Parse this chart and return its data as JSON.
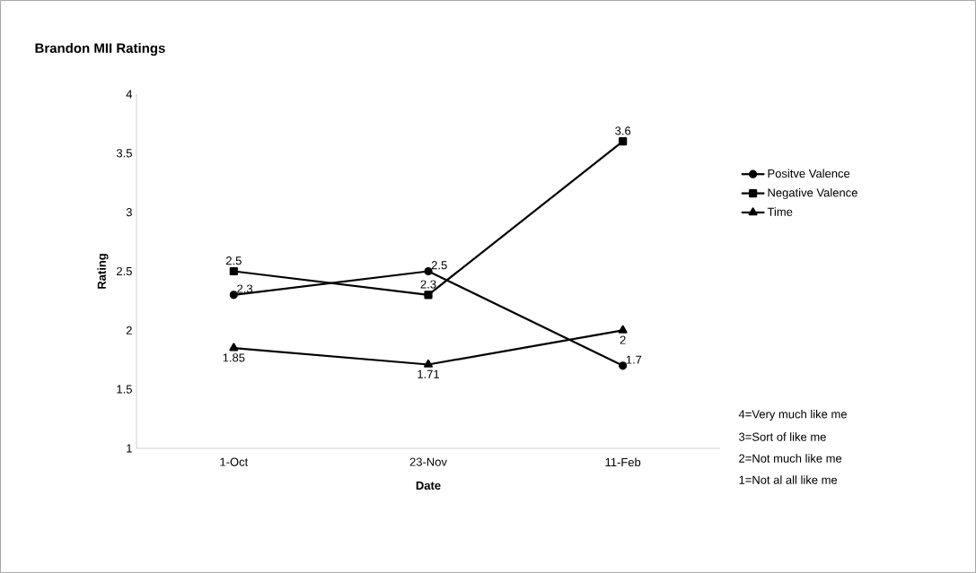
{
  "chart_data": {
    "type": "line",
    "title": "Brandon MII Ratings",
    "xlabel": "Date",
    "ylabel": "Rating",
    "categories": [
      "1-Oct",
      "23-Nov",
      "11-Feb"
    ],
    "series": [
      {
        "name": "Positve Valence",
        "color": "#000000",
        "marker": "circle",
        "values": [
          2.3,
          2.5,
          1.7
        ]
      },
      {
        "name": "Negative Valence",
        "color": "#000000",
        "marker": "square",
        "values": [
          2.5,
          2.3,
          3.6
        ]
      },
      {
        "name": "Time",
        "color": "#000000",
        "marker": "triangle",
        "values": [
          1.85,
          1.71,
          2
        ]
      }
    ],
    "ylim": [
      1,
      4
    ],
    "yticks": [
      1,
      1.5,
      2,
      2.5,
      3,
      3.5,
      4
    ],
    "grid": false,
    "legend": "right",
    "data_labels": true,
    "line_style": "solid",
    "annotations": [
      "4=Very much like me",
      "3=Sort of like me",
      "2=Not much like me",
      "1=Not al all like me"
    ]
  }
}
